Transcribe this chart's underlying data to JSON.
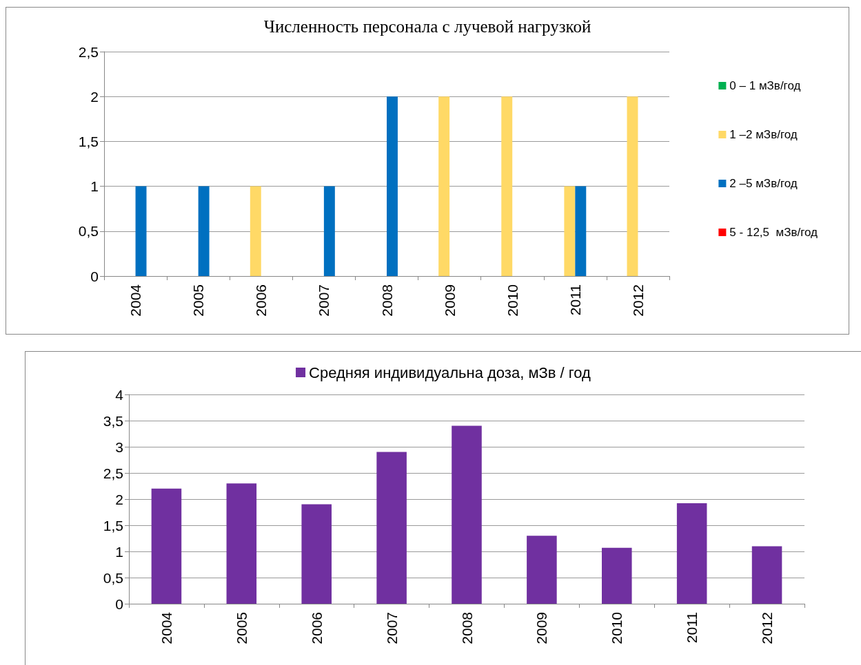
{
  "chart_data": [
    {
      "type": "bar",
      "title": "Численность персонала с лучевой нагрузкой",
      "categories": [
        "2004",
        "2005",
        "2006",
        "2007",
        "2008",
        "2009",
        "2010",
        "2011",
        "2012"
      ],
      "series": [
        {
          "name": "0 – 1 мЗв/год",
          "color": "#00b050",
          "values": [
            0,
            0,
            0,
            0,
            0,
            0,
            0,
            0,
            0
          ]
        },
        {
          "name": "1 –2 мЗв/год",
          "color": "#ffd966",
          "values": [
            0,
            0,
            1,
            0,
            0,
            2,
            2,
            1,
            2
          ]
        },
        {
          "name": "2 –5 мЗв/год",
          "color": "#0070c0",
          "values": [
            1,
            1,
            0,
            1,
            2,
            0,
            0,
            1,
            0
          ]
        },
        {
          "name": "5 - 12,5  мЗв/год",
          "color": "#ff0000",
          "values": [
            0,
            0,
            0,
            0,
            0,
            0,
            0,
            0,
            0
          ]
        }
      ],
      "ylim": [
        0,
        2.5
      ],
      "yticks": [
        0,
        {
          "value": 0.5,
          "label": "0,5"
        },
        1,
        {
          "value": 1.5,
          "label": "1,5"
        },
        2,
        {
          "value": 2.5,
          "label": "2,5"
        }
      ],
      "grid": "y",
      "legend": "right"
    },
    {
      "type": "bar",
      "categories": [
        "2004",
        "2005",
        "2006",
        "2007",
        "2008",
        "2009",
        "2010",
        "2011",
        "2012"
      ],
      "series": [
        {
          "name": "Средняя индивидуальна доза, мЗв / год",
          "color": "#7030a0",
          "values": [
            2.2,
            2.3,
            1.9,
            2.9,
            3.4,
            1.3,
            1.07,
            1.92,
            1.1
          ]
        }
      ],
      "ylim": [
        0,
        4
      ],
      "yticks": [
        0,
        {
          "value": 0.5,
          "label": "0,5"
        },
        1,
        {
          "value": 1.5,
          "label": "1,5"
        },
        2,
        {
          "value": 2.5,
          "label": "2,5"
        },
        3,
        {
          "value": 3.5,
          "label": "3,5"
        },
        4
      ],
      "grid": "y",
      "legend": "top"
    }
  ]
}
